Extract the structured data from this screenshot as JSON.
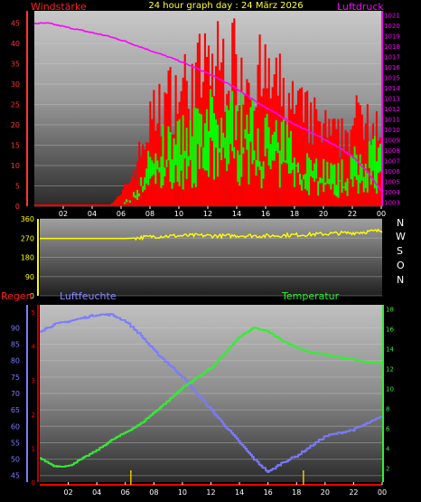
{
  "header": {
    "left_label": "Windstärke",
    "title": "24 hour graph day : 24 März 2026",
    "right_label": "Luftdruck"
  },
  "compass": [
    "N",
    "W",
    "S",
    "O",
    "N"
  ],
  "bottom_labels": {
    "regen": "Regen",
    "luftfeuchte": "Luftfeuchte",
    "temperatur": "Temperatur"
  },
  "colors": {
    "background": "#000000",
    "wind_gust": "#ff0000",
    "wind_speed": "#00ff00",
    "pressure": "#ff00ff",
    "direction": "#ffff00",
    "humidity": "#7b7bff",
    "temperature": "#33ee33",
    "rain": "#ff0000",
    "rain_marks": "#e8c400",
    "left_axis": "#ff3333",
    "right_axis": "#ff00ff"
  },
  "chart_data": [
    {
      "type": "line",
      "title": "24 hour graph day : 24 März 2026",
      "x_tick_labels": [
        "02",
        "04",
        "06",
        "08",
        "10",
        "12",
        "14",
        "16",
        "18",
        "20",
        "22",
        "00"
      ],
      "x": [
        0,
        1,
        2,
        3,
        4,
        5,
        6,
        7,
        8,
        9,
        10,
        11,
        12,
        13,
        14,
        15,
        16,
        17,
        18,
        19,
        20,
        21,
        22,
        23,
        24
      ],
      "y_left": {
        "label": "Windstärke",
        "range": [
          0,
          48
        ],
        "ticks": [
          0,
          5,
          10,
          15,
          20,
          25,
          30,
          35,
          40,
          45
        ]
      },
      "y_right": {
        "label": "Luftdruck",
        "range": [
          1002.6,
          1021.4
        ],
        "ticks": [
          1003,
          1004,
          1005,
          1006,
          1007,
          1008,
          1009,
          1010,
          1011,
          1012,
          1013,
          1014,
          1015,
          1016,
          1017,
          1018,
          1019,
          1020,
          1021
        ]
      },
      "series": [
        {
          "name": "Windstärke",
          "axis": "left",
          "values": [
            0,
            0,
            0,
            0,
            0,
            0,
            3,
            11,
            24,
            30,
            33,
            36,
            40,
            41,
            41,
            38,
            36,
            33,
            28,
            25,
            22,
            19,
            23,
            27,
            24
          ]
        },
        {
          "name": "Luftdruck",
          "axis": "right",
          "values": [
            1020.2,
            1020.2,
            1019.9,
            1019.6,
            1019.3,
            1019.0,
            1018.6,
            1018.1,
            1017.6,
            1017.1,
            1016.6,
            1016.0,
            1015.4,
            1014.7,
            1013.9,
            1013.0,
            1012.1,
            1011.3,
            1010.5,
            1009.8,
            1009.1,
            1008.3,
            1007.4,
            1006.0,
            1004.1
          ]
        }
      ],
      "wind_speed_values": [
        0,
        0,
        0,
        0,
        0,
        0,
        0,
        4,
        13,
        17,
        19,
        21,
        24,
        25,
        25,
        23,
        21,
        19,
        16,
        13,
        11,
        9,
        12,
        15,
        14
      ]
    },
    {
      "type": "line",
      "x_tick_labels": [
        "02",
        "04",
        "06",
        "08",
        "10",
        "12",
        "14",
        "16",
        "18",
        "20",
        "22",
        "00"
      ],
      "x": [
        0,
        1,
        2,
        3,
        4,
        5,
        6,
        7,
        8,
        9,
        10,
        11,
        12,
        13,
        14,
        15,
        16,
        17,
        18,
        19,
        20,
        21,
        22,
        23,
        24
      ],
      "y": {
        "range": [
          0,
          360
        ],
        "ticks": [
          0,
          90,
          180,
          270,
          360
        ]
      },
      "series": [
        {
          "name": "direction",
          "values": [
            268,
            268,
            268,
            268,
            268,
            268,
            268,
            272,
            278,
            280,
            281,
            283,
            281,
            280,
            282,
            281,
            280,
            283,
            285,
            287,
            290,
            293,
            295,
            300,
            305
          ]
        }
      ]
    },
    {
      "type": "line",
      "x_tick_labels": [
        "02",
        "04",
        "06",
        "08",
        "10",
        "12",
        "14",
        "16",
        "18",
        "20",
        "22",
        "00"
      ],
      "x": [
        0,
        1,
        2,
        3,
        4,
        5,
        6,
        7,
        8,
        9,
        10,
        11,
        12,
        13,
        14,
        15,
        16,
        17,
        18,
        19,
        20,
        21,
        22,
        23,
        24
      ],
      "y_rain": {
        "label": "Regen",
        "range": [
          0,
          5
        ],
        "ticks": [
          0,
          1,
          2,
          3,
          4,
          5
        ]
      },
      "y_left": {
        "label": "Luftfeuchte",
        "range": [
          43,
          97
        ],
        "ticks": [
          45,
          50,
          55,
          60,
          65,
          70,
          75,
          80,
          85,
          90
        ]
      },
      "y_right": {
        "label": "Temperatur",
        "range": [
          0.6,
          18.4
        ],
        "ticks": [
          2,
          4,
          6,
          8,
          10,
          12,
          14,
          16,
          18
        ]
      },
      "series": [
        {
          "name": "Luftfeuchte",
          "axis": "left",
          "values": [
            89,
            91,
            92,
            93,
            94,
            94,
            92,
            88,
            83,
            79,
            75,
            70,
            65,
            60,
            55,
            50,
            46,
            49,
            51,
            54,
            57,
            58,
            59,
            61,
            63
          ]
        },
        {
          "name": "Temperatur",
          "axis": "right",
          "values": [
            3.0,
            2.2,
            2.2,
            3.0,
            3.8,
            4.8,
            5.6,
            6.4,
            7.6,
            8.8,
            10.1,
            11.1,
            12.1,
            13.6,
            15.2,
            16.1,
            15.7,
            14.8,
            14.1,
            13.6,
            13.4,
            13.1,
            12.9,
            12.6,
            12.6
          ]
        },
        {
          "name": "Regen",
          "axis": "rain",
          "values": [
            0,
            0,
            0,
            0,
            0,
            0,
            0,
            0,
            0,
            0,
            0,
            0,
            0,
            0,
            0,
            0,
            0,
            0,
            0,
            0,
            0,
            0,
            0,
            0,
            0
          ]
        }
      ]
    }
  ]
}
